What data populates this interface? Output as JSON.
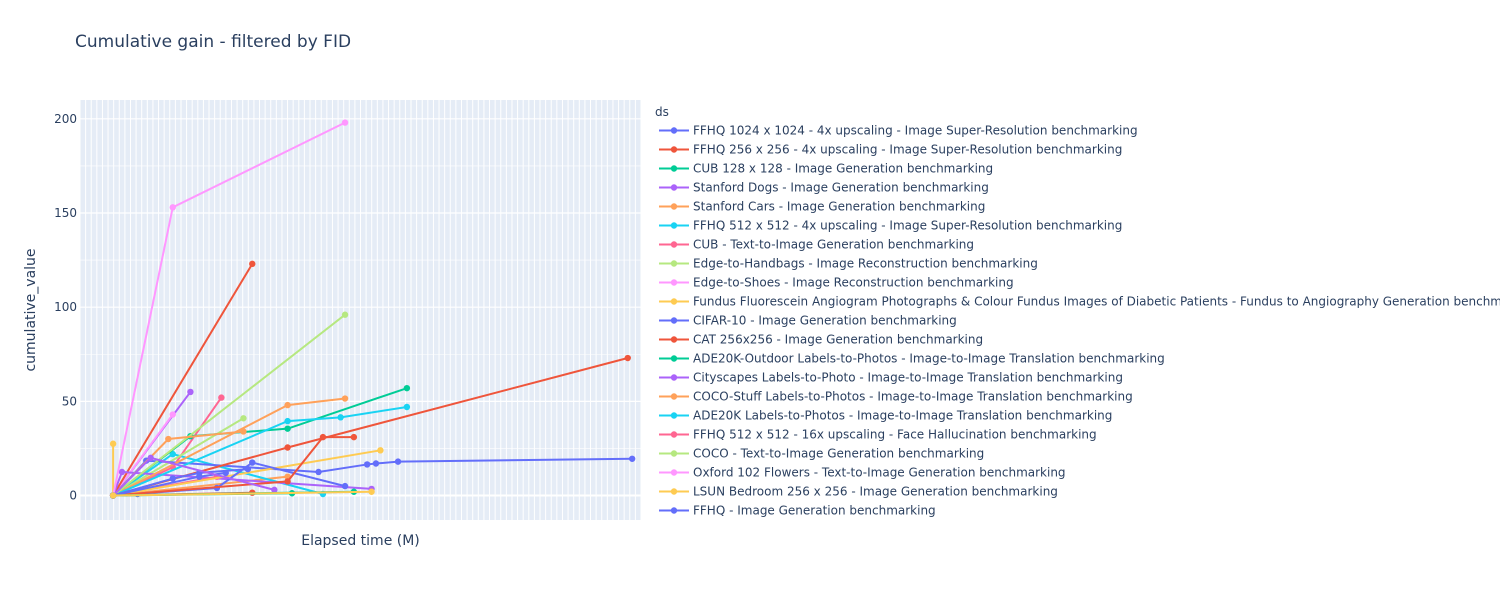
{
  "title": "Cumulative gain - filtered by FID",
  "chart_data": {
    "type": "line",
    "title": "Cumulative gain - filtered by FID",
    "xlabel": "Elapsed time (M)",
    "ylabel": "cumulative_value",
    "x_tick_labels_shown": false,
    "xlim": [
      -2,
      125
    ],
    "ylim": [
      -13,
      210
    ],
    "y_ticks": [
      0,
      50,
      100,
      150,
      200
    ],
    "legend_title": "ds",
    "legend_position": "right",
    "grid": true,
    "series": [
      {
        "name": "FFHQ 1024 x 1024 - 4x upscaling - Image Super-Resolution benchmarking",
        "color": "#636efa",
        "points": [
          [
            5.5,
            0
          ],
          [
            11,
            0.8
          ]
        ]
      },
      {
        "name": "FFHQ 256 x 256 - 4x upscaling - Image Super-Resolution benchmarking",
        "color": "#ef553b",
        "points": [
          [
            5.5,
            0
          ],
          [
            37,
            1.5
          ]
        ]
      },
      {
        "name": "CUB 128 x 128 - Image Generation benchmarking",
        "color": "#00cc96",
        "points": [
          [
            5.5,
            0
          ],
          [
            46,
            1.2
          ]
        ]
      },
      {
        "name": "Stanford Dogs - Image Generation benchmarking",
        "color": "#ab63fa",
        "points": [
          [
            5.5,
            0
          ],
          [
            23,
            55
          ]
        ]
      },
      {
        "name": "Stanford Cars - Image Generation benchmarking",
        "color": "#ffa15a",
        "points": [
          [
            5.5,
            0
          ],
          [
            45,
            10
          ]
        ]
      },
      {
        "name": "FFHQ 512 x 512 - 4x upscaling - Image Super-Resolution benchmarking",
        "color": "#19d3f3",
        "points": [
          [
            5.5,
            0
          ],
          [
            19,
            22
          ],
          [
            53,
            0.8
          ]
        ]
      },
      {
        "name": "CUB - Text-to-Image Generation benchmarking",
        "color": "#ff6692",
        "points": [
          [
            5.5,
            0
          ],
          [
            19,
            15
          ],
          [
            30,
            52
          ]
        ]
      },
      {
        "name": "Edge-to-Handbags - Image Reconstruction benchmarking",
        "color": "#b6e880",
        "points": [
          [
            5.5,
            0
          ],
          [
            35,
            41
          ]
        ]
      },
      {
        "name": "Edge-to-Shoes - Image Reconstruction benchmarking",
        "color": "#ff97ff",
        "points": [
          [
            5.5,
            0
          ],
          [
            19,
            43
          ]
        ]
      },
      {
        "name": "Fundus Fluorescein Angiogram Photographs & Colour Fundus Images of Diabetic Patients - Fundus to Angiography Generation benchmarking",
        "color": "#fecb52",
        "points": [
          [
            5.5,
            27.5
          ],
          [
            5.5,
            0
          ]
        ]
      },
      {
        "name": "CIFAR-10 - Image Generation benchmarking",
        "color": "#636efa",
        "points": [
          [
            5.5,
            0
          ],
          [
            13,
            18.5
          ],
          [
            52,
            12.5
          ],
          [
            63,
            16.5
          ],
          [
            65,
            17
          ],
          [
            70,
            18
          ],
          [
            123,
            19.5
          ]
        ]
      },
      {
        "name": "CAT 256x256 - Image Generation benchmarking",
        "color": "#ef553b",
        "points": [
          [
            5.5,
            0
          ],
          [
            37,
            123
          ]
        ]
      },
      {
        "name": "ADE20K-Outdoor Labels-to-Photos - Image-to-Image Translation benchmarking",
        "color": "#00cc96",
        "points": [
          [
            5.5,
            0
          ],
          [
            23,
            31.5
          ],
          [
            45,
            35.5
          ],
          [
            72,
            57
          ]
        ]
      },
      {
        "name": "Cityscapes Labels-to-Photo - Image-to-Image Translation benchmarking",
        "color": "#ab63fa",
        "points": [
          [
            5.5,
            0
          ],
          [
            7.5,
            12.5
          ],
          [
            64,
            3.5
          ]
        ]
      },
      {
        "name": "COCO-Stuff Labels-to-Photos - Image-to-Image Translation benchmarking",
        "color": "#ffa15a",
        "points": [
          [
            5.5,
            0
          ],
          [
            45,
            48
          ],
          [
            58,
            51.5
          ]
        ]
      },
      {
        "name": "ADE20K Labels-to-Photos - Image-to-Image Translation benchmarking",
        "color": "#19d3f3",
        "points": [
          [
            5.5,
            0
          ],
          [
            45,
            39.5
          ],
          [
            57,
            41.5
          ],
          [
            72,
            47
          ]
        ]
      },
      {
        "name": "FFHQ 512 x 512 - 16x upscaling - Face Hallucination benchmarking",
        "color": "#ff6692",
        "points": [
          [
            5.5,
            0
          ],
          [
            29,
            10
          ]
        ]
      },
      {
        "name": "COCO - Text-to-Image Generation benchmarking",
        "color": "#b6e880",
        "points": [
          [
            5.5,
            0
          ],
          [
            58,
            96
          ]
        ]
      },
      {
        "name": "Oxford 102 Flowers - Text-to-Image Generation benchmarking",
        "color": "#ff97ff",
        "points": [
          [
            5.5,
            0
          ],
          [
            19,
            153
          ],
          [
            58,
            198
          ]
        ]
      },
      {
        "name": "LSUN Bedroom 256 x 256 - Image Generation benchmarking",
        "color": "#fecb52",
        "points": [
          [
            5.5,
            0
          ],
          [
            66,
            24
          ]
        ]
      },
      {
        "name": "FFHQ - Image Generation benchmarking",
        "color": "#636efa",
        "points": [
          [
            5.5,
            0
          ],
          [
            29,
            4
          ],
          [
            37,
            17.5
          ],
          [
            58,
            5
          ]
        ]
      },
      {
        "name": "",
        "color": "#ef553b",
        "points": [
          [
            5.5,
            0
          ],
          [
            45,
            7.5
          ],
          [
            53,
            31
          ],
          [
            60,
            31
          ]
        ]
      },
      {
        "name": "",
        "color": "#ef553b",
        "points": [
          [
            5.5,
            0
          ],
          [
            45,
            25.5
          ],
          [
            122,
            73
          ]
        ]
      },
      {
        "name": "",
        "color": "#636efa",
        "points": [
          [
            5.5,
            0
          ],
          [
            19,
            9
          ],
          [
            25,
            12
          ],
          [
            36,
            14
          ]
        ]
      },
      {
        "name": "",
        "color": "#ffa15a",
        "points": [
          [
            5.5,
            0
          ],
          [
            18,
            30
          ],
          [
            35,
            34
          ]
        ]
      },
      {
        "name": "",
        "color": "#636efa",
        "points": [
          [
            5.5,
            0
          ],
          [
            25,
            10
          ],
          [
            31,
            12
          ]
        ]
      },
      {
        "name": "",
        "color": "#ab63fa",
        "points": [
          [
            5.5,
            0
          ],
          [
            14,
            20
          ],
          [
            42,
            3
          ]
        ]
      },
      {
        "name": "",
        "color": "#00cc96",
        "points": [
          [
            5.5,
            0
          ],
          [
            60,
            2
          ]
        ]
      },
      {
        "name": "",
        "color": "#fecb52",
        "points": [
          [
            5.5,
            0
          ],
          [
            64,
            2
          ]
        ]
      }
    ]
  }
}
